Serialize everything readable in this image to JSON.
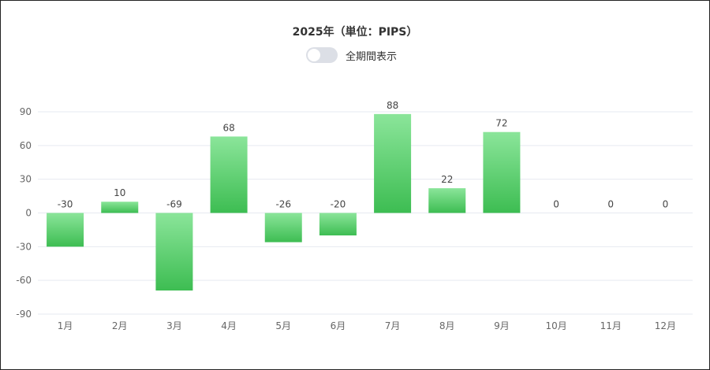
{
  "header": {
    "title": "2025年（単位：PIPS）",
    "toggle_label": "全期間表示",
    "toggle_on": false
  },
  "colors": {
    "bar_top": "#8be59a",
    "bar_bottom": "#3dbd52",
    "grid": "#e6e9f0",
    "axis_text": "#666666",
    "label_text": "#444444"
  },
  "chart_data": {
    "type": "bar",
    "categories": [
      "1月",
      "2月",
      "3月",
      "4月",
      "5月",
      "6月",
      "7月",
      "8月",
      "9月",
      "10月",
      "11月",
      "12月"
    ],
    "values": [
      -30,
      10,
      -69,
      68,
      -26,
      -20,
      88,
      22,
      72,
      0,
      0,
      0
    ],
    "data_labels": [
      "-30",
      "10",
      "-69",
      "68",
      "-26",
      "-20",
      "88",
      "22",
      "72",
      "0",
      "0",
      "0"
    ],
    "yticks": [
      90,
      60,
      30,
      0,
      -30,
      -60,
      -90
    ],
    "ylim": [
      -90,
      90
    ],
    "grid": true
  }
}
